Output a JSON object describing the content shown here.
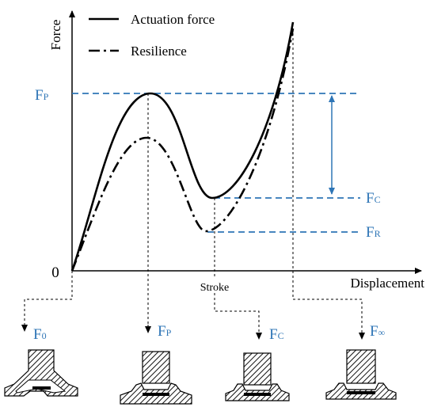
{
  "axes": {
    "y_label": "Force",
    "x_label": "Displacement",
    "origin_label": "0",
    "stroke_label": "Stroke"
  },
  "legend": {
    "actuation": "Actuation force",
    "resilience": "Resilience"
  },
  "force_levels": {
    "fp": {
      "main": "F",
      "sub": "P"
    },
    "fc": {
      "main": "F",
      "sub": "C"
    },
    "fr": {
      "main": "F",
      "sub": "R"
    }
  },
  "stages": [
    {
      "main": "F",
      "sub": "0"
    },
    {
      "main": "F",
      "sub": "P"
    },
    {
      "main": "F",
      "sub": "C"
    },
    {
      "main": "F",
      "sub": "∞"
    }
  ],
  "colors": {
    "accent_blue": "#2E75B6",
    "ink": "#000000",
    "hatch_fill": "#333333"
  }
}
